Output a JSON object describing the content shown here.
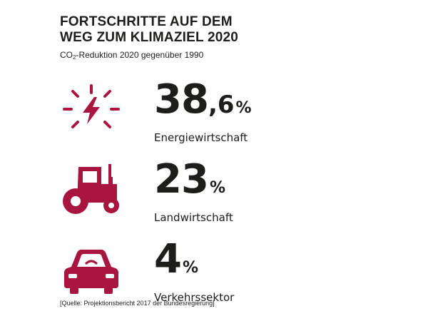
{
  "header": {
    "title_line1": "FORTSCHRITTE AUF DEM",
    "title_line2": "WEG ZUM KLIMAZIEL 2020",
    "subtitle_pre": "CO",
    "subtitle_sub": "2",
    "subtitle_post": "-Reduktion 2020 gegenüber 1990"
  },
  "stats": [
    {
      "icon": "lightning-icon",
      "value_int": "38",
      "value_dec": ",6",
      "unit": "%",
      "label": "Energiewirtschaft"
    },
    {
      "icon": "tractor-icon",
      "value_int": "23",
      "value_dec": "",
      "unit": "%",
      "label": "Landwirtschaft"
    },
    {
      "icon": "car-icon",
      "value_int": "4",
      "value_dec": "",
      "unit": "%",
      "label": "Verkehrssektor"
    }
  ],
  "source": "[Quelle: Projektionsbericht 2017 der Bundesregierung]",
  "colors": {
    "accent": "#a8163f",
    "text": "#1d1d1b"
  }
}
